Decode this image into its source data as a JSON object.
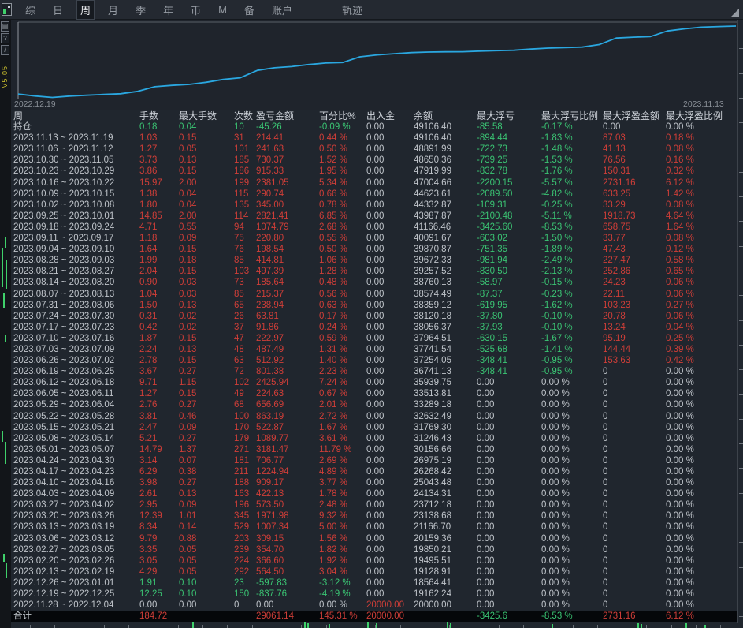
{
  "menu": {
    "items": [
      "综",
      "日",
      "周",
      "月",
      "季",
      "年",
      "币",
      "M",
      "备",
      "账户",
      "轨迹"
    ],
    "selected": "周"
  },
  "sidebar": {
    "version": "V5.05",
    "buttons": [
      "image",
      "help",
      "slash"
    ]
  },
  "chart": {
    "start_label": "2022.12.19",
    "end_label": "2023.11.13",
    "line_color": "#2aa7e0"
  },
  "chart_data": {
    "type": "line",
    "title": "",
    "xlabel": "",
    "ylabel": "",
    "x_start_label": "2022.12.19",
    "x_end_label": "2023.11.13",
    "legend": false,
    "grid": false,
    "ylim": [
      18000,
      50000
    ],
    "series": [
      {
        "name": "余额",
        "x": [
          "2022.12.04",
          "2022.12.25",
          "2023.01.01",
          "2023.02.19",
          "2023.02.26",
          "2023.03.05",
          "2023.03.12",
          "2023.03.19",
          "2023.03.26",
          "2023.04.02",
          "2023.04.09",
          "2023.04.16",
          "2023.04.23",
          "2023.04.30",
          "2023.05.07",
          "2023.05.14",
          "2023.05.21",
          "2023.05.28",
          "2023.06.04",
          "2023.06.11",
          "2023.06.18",
          "2023.06.25",
          "2023.07.02",
          "2023.07.09",
          "2023.07.16",
          "2023.07.23",
          "2023.07.30",
          "2023.08.06",
          "2023.08.13",
          "2023.08.20",
          "2023.08.27",
          "2023.09.03",
          "2023.09.10",
          "2023.09.17",
          "2023.09.24",
          "2023.10.01",
          "2023.10.08",
          "2023.10.15",
          "2023.10.22",
          "2023.10.29",
          "2023.11.05",
          "2023.11.12",
          "2023.11.19"
        ],
        "values": [
          20000.0,
          19162.24,
          18564.41,
          19128.91,
          19495.51,
          19850.21,
          20159.36,
          21166.7,
          23138.68,
          23712.18,
          24134.31,
          25043.48,
          26268.42,
          26975.19,
          30156.66,
          31246.43,
          31769.3,
          32632.49,
          33289.18,
          33513.81,
          35939.75,
          36741.13,
          37254.05,
          37741.54,
          37964.51,
          38056.37,
          38120.18,
          38359.12,
          38574.49,
          38760.13,
          39257.52,
          39672.33,
          39870.87,
          40091.67,
          41166.46,
          43987.87,
          44332.87,
          44623.61,
          47004.66,
          47919.99,
          48650.36,
          48891.99,
          49106.4
        ]
      }
    ]
  },
  "table": {
    "headers": [
      "周",
      "手数",
      "最大手数",
      "次数",
      "盈亏金额",
      "百分比%",
      "出入金",
      "余额",
      "最大浮亏",
      "最大浮亏比例",
      "最大浮盈金额",
      "最大浮盈比例"
    ],
    "columns": [
      "period",
      "lots",
      "max_lots",
      "trades",
      "pnl",
      "pct",
      "cashflow",
      "balance",
      "max_dd",
      "max_dd_pct",
      "max_float",
      "max_float_pct"
    ],
    "position_row": [
      "持仓",
      "0.18",
      "0.04",
      "10",
      "-45.26",
      "-0.09 %",
      "0.00",
      "49106.40",
      "-85.58",
      "-0.17 %",
      "0.00",
      "0.00 %"
    ],
    "week_rows": [
      [
        "2023.11.13 ~ 2023.11.19",
        "1.03",
        "0.15",
        "31",
        "214.41",
        "0.44 %",
        "0.00",
        "49106.40",
        "-894.44",
        "-1.83 %",
        "87.03",
        "0.18 %"
      ],
      [
        "2023.11.06 ~ 2023.11.12",
        "1.27",
        "0.05",
        "101",
        "241.63",
        "0.50 %",
        "0.00",
        "48891.99",
        "-722.73",
        "-1.48 %",
        "41.13",
        "0.08 %"
      ],
      [
        "2023.10.30 ~ 2023.11.05",
        "3.73",
        "0.13",
        "185",
        "730.37",
        "1.52 %",
        "0.00",
        "48650.36",
        "-739.25",
        "-1.53 %",
        "76.56",
        "0.16 %"
      ],
      [
        "2023.10.23 ~ 2023.10.29",
        "3.86",
        "0.15",
        "186",
        "915.33",
        "1.95 %",
        "0.00",
        "47919.99",
        "-832.78",
        "-1.76 %",
        "150.31",
        "0.32 %"
      ],
      [
        "2023.10.16 ~ 2023.10.22",
        "15.97",
        "2.00",
        "199",
        "2381.05",
        "5.34 %",
        "0.00",
        "47004.66",
        "-2200.15",
        "-5.57 %",
        "2731.16",
        "6.12 %"
      ],
      [
        "2023.10.09 ~ 2023.10.15",
        "1.38",
        "0.04",
        "115",
        "290.74",
        "0.66 %",
        "0.00",
        "44623.61",
        "-2089.50",
        "-4.82 %",
        "633.25",
        "1.42 %"
      ],
      [
        "2023.10.02 ~ 2023.10.08",
        "1.80",
        "0.04",
        "135",
        "345.00",
        "0.78 %",
        "0.00",
        "44332.87",
        "-109.31",
        "-0.25 %",
        "33.29",
        "0.08 %"
      ],
      [
        "2023.09.25 ~ 2023.10.01",
        "14.85",
        "2.00",
        "114",
        "2821.41",
        "6.85 %",
        "0.00",
        "43987.87",
        "-2100.48",
        "-5.11 %",
        "1918.73",
        "4.64 %"
      ],
      [
        "2023.09.18 ~ 2023.09.24",
        "4.71",
        "0.55",
        "94",
        "1074.79",
        "2.68 %",
        "0.00",
        "41166.46",
        "-3425.60",
        "-8.53 %",
        "658.75",
        "1.64 %"
      ],
      [
        "2023.09.11 ~ 2023.09.17",
        "1.18",
        "0.09",
        "75",
        "220.80",
        "0.55 %",
        "0.00",
        "40091.67",
        "-603.02",
        "-1.50 %",
        "33.77",
        "0.08 %"
      ],
      [
        "2023.09.04 ~ 2023.09.10",
        "1.64",
        "0.15",
        "76",
        "198.54",
        "0.50 %",
        "0.00",
        "39870.87",
        "-751.35",
        "-1.89 %",
        "47.43",
        "0.12 %"
      ],
      [
        "2023.08.28 ~ 2023.09.03",
        "1.99",
        "0.18",
        "85",
        "414.81",
        "1.06 %",
        "0.00",
        "39672.33",
        "-981.94",
        "-2.49 %",
        "227.47",
        "0.58 %"
      ],
      [
        "2023.08.21 ~ 2023.08.27",
        "2.04",
        "0.15",
        "103",
        "497.39",
        "1.28 %",
        "0.00",
        "39257.52",
        "-830.50",
        "-2.13 %",
        "252.86",
        "0.65 %"
      ],
      [
        "2023.08.14 ~ 2023.08.20",
        "0.90",
        "0.03",
        "73",
        "185.64",
        "0.48 %",
        "0.00",
        "38760.13",
        "-58.97",
        "-0.15 %",
        "24.23",
        "0.06 %"
      ],
      [
        "2023.08.07 ~ 2023.08.13",
        "1.04",
        "0.03",
        "85",
        "215.37",
        "0.56 %",
        "0.00",
        "38574.49",
        "-87.37",
        "-0.23 %",
        "22.11",
        "0.06 %"
      ],
      [
        "2023.07.31 ~ 2023.08.06",
        "1.50",
        "0.13",
        "65",
        "238.94",
        "0.63 %",
        "0.00",
        "38359.12",
        "-619.95",
        "-1.62 %",
        "103.23",
        "0.27 %"
      ],
      [
        "2023.07.24 ~ 2023.07.30",
        "0.31",
        "0.02",
        "26",
        "63.81",
        "0.17 %",
        "0.00",
        "38120.18",
        "-37.80",
        "-0.10 %",
        "20.78",
        "0.06 %"
      ],
      [
        "2023.07.17 ~ 2023.07.23",
        "0.42",
        "0.02",
        "37",
        "91.86",
        "0.24 %",
        "0.00",
        "38056.37",
        "-37.93",
        "-0.10 %",
        "13.24",
        "0.04 %"
      ],
      [
        "2023.07.10 ~ 2023.07.16",
        "1.87",
        "0.15",
        "47",
        "222.97",
        "0.59 %",
        "0.00",
        "37964.51",
        "-630.15",
        "-1.67 %",
        "95.19",
        "0.25 %"
      ],
      [
        "2023.07.03 ~ 2023.07.09",
        "2.24",
        "0.13",
        "48",
        "487.49",
        "1.31 %",
        "0.00",
        "37741.54",
        "-525.68",
        "-1.41 %",
        "144.44",
        "0.39 %"
      ],
      [
        "2023.06.26 ~ 2023.07.02",
        "2.78",
        "0.15",
        "63",
        "512.92",
        "1.40 %",
        "0.00",
        "37254.05",
        "-348.41",
        "-0.95 %",
        "153.63",
        "0.42 %"
      ],
      [
        "2023.06.19 ~ 2023.06.25",
        "3.67",
        "0.27",
        "72",
        "801.38",
        "2.23 %",
        "0.00",
        "36741.13",
        "-348.41",
        "-0.95 %",
        "0",
        "0.00 %"
      ],
      [
        "2023.06.12 ~ 2023.06.18",
        "9.71",
        "1.15",
        "102",
        "2425.94",
        "7.24 %",
        "0.00",
        "35939.75",
        "0.00",
        "0.00 %",
        "0",
        "0.00 %"
      ],
      [
        "2023.06.05 ~ 2023.06.11",
        "1.27",
        "0.15",
        "49",
        "224.63",
        "0.67 %",
        "0.00",
        "33513.81",
        "0.00",
        "0.00 %",
        "0",
        "0.00 %"
      ],
      [
        "2023.05.29 ~ 2023.06.04",
        "2.76",
        "0.27",
        "68",
        "656.69",
        "2.01 %",
        "0.00",
        "33289.18",
        "0.00",
        "0.00 %",
        "0",
        "0.00 %"
      ],
      [
        "2023.05.22 ~ 2023.05.28",
        "3.81",
        "0.46",
        "100",
        "863.19",
        "2.72 %",
        "0.00",
        "32632.49",
        "0.00",
        "0.00 %",
        "0",
        "0.00 %"
      ],
      [
        "2023.05.15 ~ 2023.05.21",
        "2.47",
        "0.09",
        "170",
        "522.87",
        "1.67 %",
        "0.00",
        "31769.30",
        "0.00",
        "0.00 %",
        "0",
        "0.00 %"
      ],
      [
        "2023.05.08 ~ 2023.05.14",
        "5.21",
        "0.27",
        "179",
        "1089.77",
        "3.61 %",
        "0.00",
        "31246.43",
        "0.00",
        "0.00 %",
        "0",
        "0.00 %"
      ],
      [
        "2023.05.01 ~ 2023.05.07",
        "14.79",
        "1.37",
        "271",
        "3181.47",
        "11.79 %",
        "0.00",
        "30156.66",
        "0.00",
        "0.00 %",
        "0",
        "0.00 %"
      ],
      [
        "2023.04.24 ~ 2023.04.30",
        "3.14",
        "0.07",
        "181",
        "706.77",
        "2.69 %",
        "0.00",
        "26975.19",
        "0.00",
        "0.00 %",
        "0",
        "0.00 %"
      ],
      [
        "2023.04.17 ~ 2023.04.23",
        "6.29",
        "0.38",
        "211",
        "1224.94",
        "4.89 %",
        "0.00",
        "26268.42",
        "0.00",
        "0.00 %",
        "0",
        "0.00 %"
      ],
      [
        "2023.04.10 ~ 2023.04.16",
        "3.98",
        "0.27",
        "188",
        "909.17",
        "3.77 %",
        "0.00",
        "25043.48",
        "0.00",
        "0.00 %",
        "0",
        "0.00 %"
      ],
      [
        "2023.04.03 ~ 2023.04.09",
        "2.61",
        "0.13",
        "163",
        "422.13",
        "1.78 %",
        "0.00",
        "24134.31",
        "0.00",
        "0.00 %",
        "0",
        "0.00 %"
      ],
      [
        "2023.03.27 ~ 2023.04.02",
        "2.95",
        "0.09",
        "196",
        "573.50",
        "2.48 %",
        "0.00",
        "23712.18",
        "0.00",
        "0.00 %",
        "0",
        "0.00 %"
      ],
      [
        "2023.03.20 ~ 2023.03.26",
        "12.39",
        "1.01",
        "345",
        "1971.98",
        "9.32 %",
        "0.00",
        "23138.68",
        "0.00",
        "0.00 %",
        "0",
        "0.00 %"
      ],
      [
        "2023.03.13 ~ 2023.03.19",
        "8.34",
        "0.14",
        "529",
        "1007.34",
        "5.00 %",
        "0.00",
        "21166.70",
        "0.00",
        "0.00 %",
        "0",
        "0.00 %"
      ],
      [
        "2023.03.06 ~ 2023.03.12",
        "9.79",
        "0.88",
        "203",
        "309.15",
        "1.56 %",
        "0.00",
        "20159.36",
        "0.00",
        "0.00 %",
        "0",
        "0.00 %"
      ],
      [
        "2023.02.27 ~ 2023.03.05",
        "3.35",
        "0.05",
        "239",
        "354.70",
        "1.82 %",
        "0.00",
        "19850.21",
        "0.00",
        "0.00 %",
        "0",
        "0.00 %"
      ],
      [
        "2023.02.20 ~ 2023.02.26",
        "3.05",
        "0.05",
        "224",
        "366.60",
        "1.92 %",
        "0.00",
        "19495.51",
        "0.00",
        "0.00 %",
        "0",
        "0.00 %"
      ],
      [
        "2023.02.13 ~ 2023.02.19",
        "4.29",
        "0.05",
        "292",
        "564.50",
        "3.04 %",
        "0.00",
        "19128.91",
        "0.00",
        "0.00 %",
        "0",
        "0.00 %"
      ],
      [
        "2022.12.26 ~ 2023.01.01",
        "1.91",
        "0.10",
        "23",
        "-597.83",
        "-3.12 %",
        "0.00",
        "18564.41",
        "0.00",
        "0.00 %",
        "0",
        "0.00 %"
      ],
      [
        "2022.12.19 ~ 2022.12.25",
        "12.25",
        "0.10",
        "150",
        "-837.76",
        "-4.19 %",
        "0.00",
        "19162.24",
        "0.00",
        "0.00 %",
        "0",
        "0.00 %"
      ],
      [
        "2022.11.28 ~ 2022.12.04",
        "0.00",
        "0.00",
        "0",
        "0.00",
        "0.00 %",
        "20000.00",
        "20000.00",
        "0.00",
        "0.00 %",
        "0",
        "0.00 %"
      ]
    ],
    "total_row": [
      "合计",
      "184.72",
      "",
      "",
      "29061.14",
      "145.31 %",
      "20000.00",
      "",
      "-3425.6",
      "-8.53 %",
      "2731.16",
      "6.12 %"
    ]
  },
  "colors": {
    "gain_red": "#cf3e38",
    "loss_green": "#3ac473",
    "plain_text": "#bfc4ca",
    "equity_line": "#2aa7e0",
    "version_yellow": "#c8bd2e"
  }
}
